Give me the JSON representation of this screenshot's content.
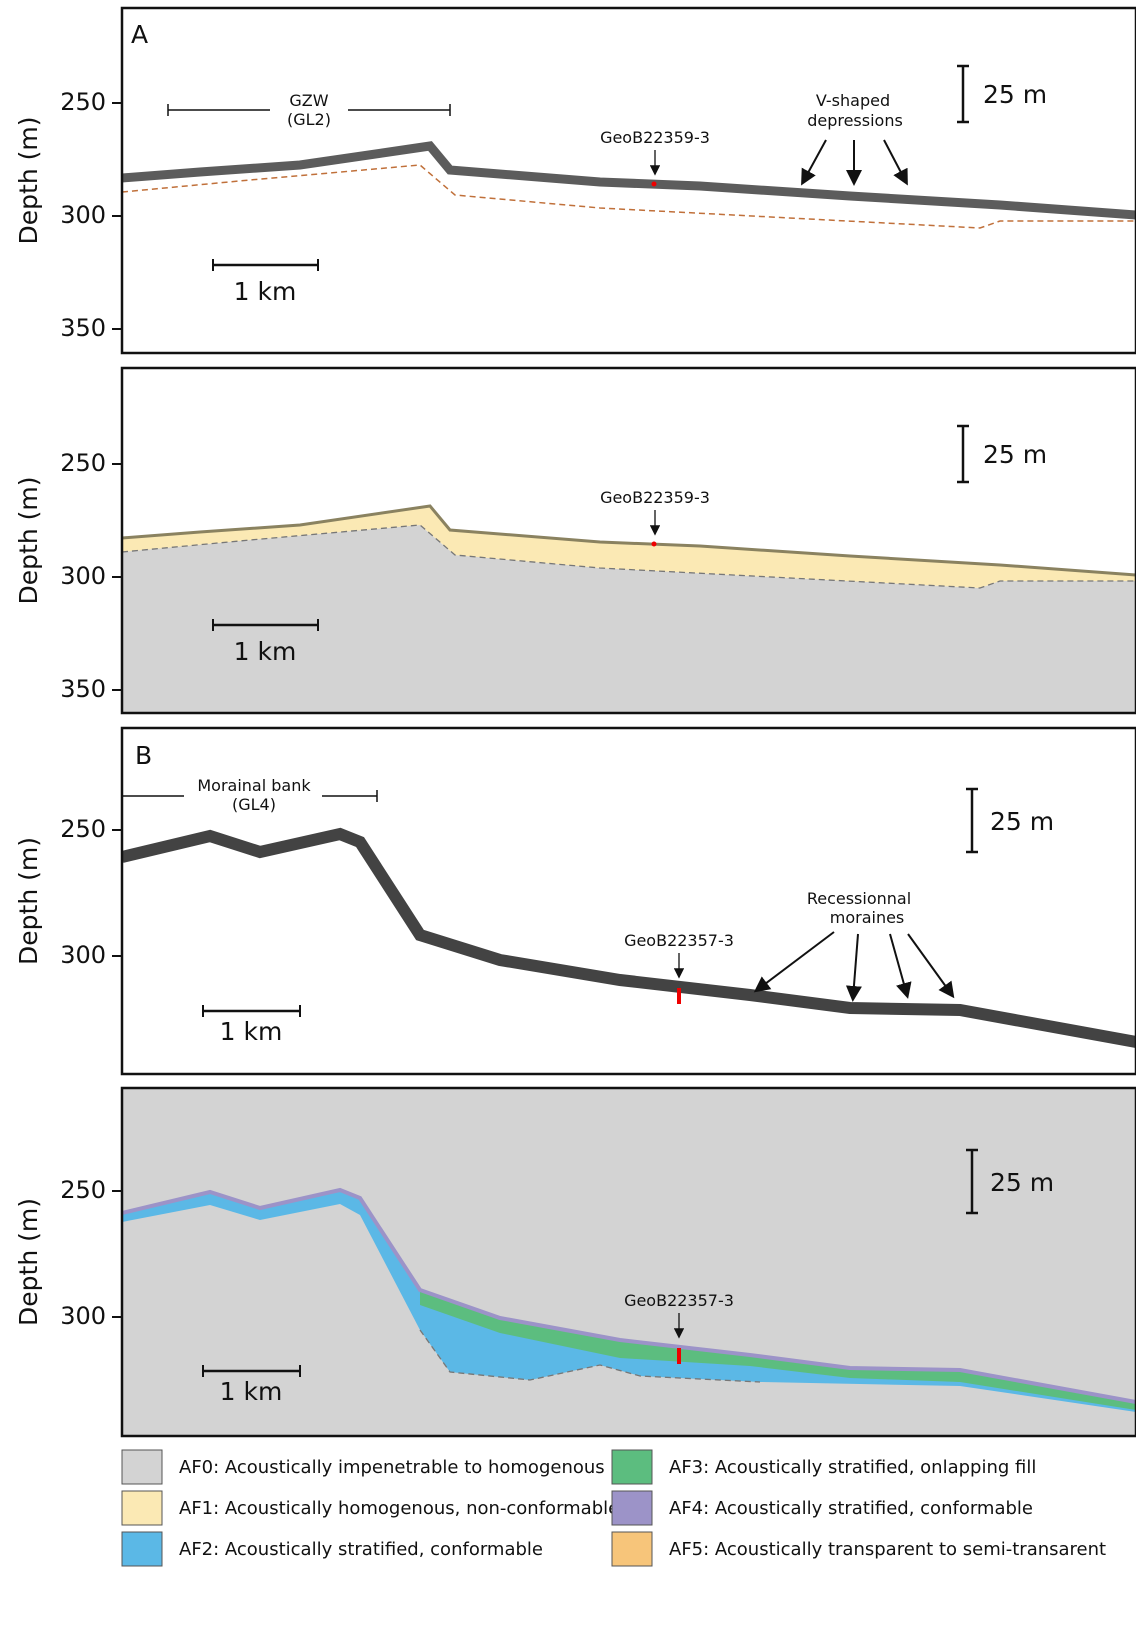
{
  "panels": [
    {
      "label": "A",
      "y_axis_label": "Depth (m)",
      "yticks": [
        250,
        300,
        350
      ],
      "scale_vertical": "25 m",
      "scale_horizontal": "1 km",
      "annotations": [
        {
          "lines": [
            "GZW",
            "(GL2)"
          ]
        },
        {
          "lines": [
            "GeoB22359-3"
          ]
        },
        {
          "lines": [
            "V-shaped",
            "depressions"
          ]
        }
      ]
    },
    {
      "label": null,
      "y_axis_label": "Depth (m)",
      "yticks": [
        250,
        300,
        350
      ],
      "scale_vertical": "25 m",
      "scale_horizontal": "1 km",
      "annotations": [
        {
          "lines": [
            "GeoB22359-3"
          ]
        }
      ]
    },
    {
      "label": "B",
      "y_axis_label": "Depth (m)",
      "yticks": [
        250,
        300
      ],
      "scale_vertical": "25 m",
      "scale_horizontal": "1 km",
      "annotations": [
        {
          "lines": [
            "Morainal bank",
            "(GL4)"
          ]
        },
        {
          "lines": [
            "GeoB22357-3"
          ]
        },
        {
          "lines": [
            "Recessionnal",
            "moraines"
          ]
        }
      ]
    },
    {
      "label": null,
      "y_axis_label": "Depth (m)",
      "yticks": [
        250,
        300
      ],
      "scale_vertical": "25 m",
      "scale_horizontal": "1 km",
      "annotations": [
        {
          "lines": [
            "GeoB22357-3"
          ]
        }
      ]
    }
  ],
  "legend": [
    {
      "text": "AF0: Acoustically impenetrable to homogenous",
      "color": "#d3d3d3"
    },
    {
      "text": "AF1: Acoustically homogenous, non-conformable",
      "color": "#fbe9b4"
    },
    {
      "text": "AF2: Acoustically stratified, conformable",
      "color": "#5bb8e6"
    },
    {
      "text": "AF3: Acoustically stratified, onlapping fill",
      "color": "#5cbd7f"
    },
    {
      "text": "AF4: Acoustically stratified, conformable",
      "color": "#9c93c8"
    },
    {
      "text": "AF5: Acoustically transparent to semi-transarent",
      "color": "#f7c57a"
    }
  ]
}
